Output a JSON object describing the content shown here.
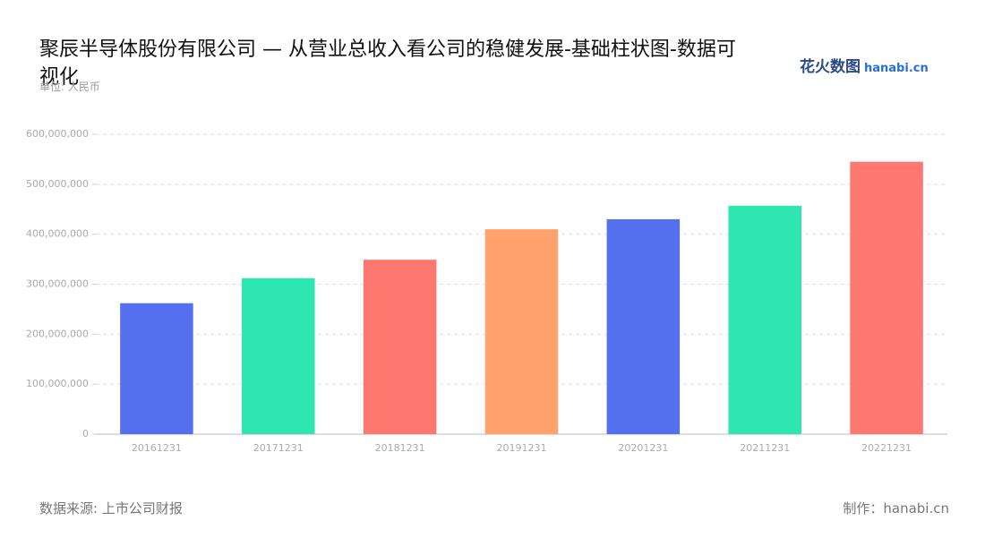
{
  "chart_data": {
    "type": "bar",
    "title": "聚辰半导体股份有限公司 — 从营业总收入看公司的稳健发展-基础柱状图-数据可视化",
    "subtitle": "单位: 人民币",
    "logo": "花火数图",
    "logo_text": "hanabi.cn",
    "source": "数据来源: 上市公司财报",
    "credit": "制作：hanabi.cn",
    "categories": [
      "20161231",
      "20171231",
      "20181231",
      "20191231",
      "20201231",
      "20211231",
      "20221231"
    ],
    "values": [
      262000000,
      312000000,
      349000000,
      410000000,
      430000000,
      457000000,
      545000000
    ],
    "colors": [
      "#5470ee",
      "#2de6b0",
      "#ff7870",
      "#ffa26e",
      "#5470ee",
      "#2de6b0",
      "#ff7870"
    ],
    "ylim": [
      0,
      600000000
    ],
    "yticks": [
      0,
      {
        "value": 100000000,
        "label": "100,000,000"
      },
      {
        "value": 200000000,
        "label": "200,000,000"
      },
      {
        "value": 300000000,
        "label": "300,000,000"
      },
      {
        "value": 400000000,
        "label": "400,000,000"
      },
      {
        "value": 500000000,
        "label": "500,000,000"
      },
      {
        "value": 600000000,
        "label": "600,000,000"
      }
    ],
    "grid": true
  }
}
